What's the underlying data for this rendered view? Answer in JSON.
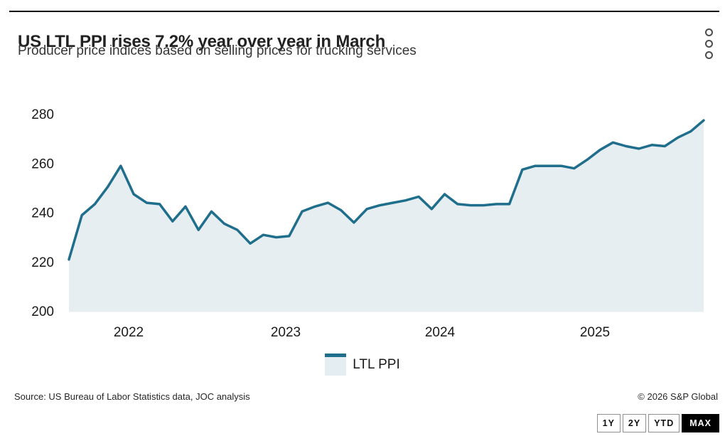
{
  "header": {
    "title": "US LTL PPI rises 7.2% year over year in March",
    "subtitle": "Producer price indices based on selling prices for trucking services"
  },
  "chart_data": {
    "type": "area",
    "title": "US LTL PPI rises 7.2% year over year in March",
    "subtitle": "Producer price indices based on selling prices for trucking services",
    "x": [
      "2022-02",
      "2022-03",
      "2022-04",
      "2022-05",
      "2022-06",
      "2022-07",
      "2022-08",
      "2022-09",
      "2022-10",
      "2022-11",
      "2022-12",
      "2023-01",
      "2023-02",
      "2023-03",
      "2023-04",
      "2023-05",
      "2023-06",
      "2023-07",
      "2023-08",
      "2023-09",
      "2023-10",
      "2023-11",
      "2023-12",
      "2024-01",
      "2024-02",
      "2024-03",
      "2024-04",
      "2024-05",
      "2024-06",
      "2024-07",
      "2024-08",
      "2024-09",
      "2024-10",
      "2024-11",
      "2024-12",
      "2025-01",
      "2025-02",
      "2025-03",
      "2025-04",
      "2025-05",
      "2025-06",
      "2025-07",
      "2025-08",
      "2025-09",
      "2025-10",
      "2025-11",
      "2025-12",
      "2026-01",
      "2026-02",
      "2026-03"
    ],
    "series": [
      {
        "name": "LTL PPI",
        "values": [
          221,
          239,
          243.5,
          250.5,
          259,
          247.5,
          244,
          243.5,
          236.5,
          242.5,
          233,
          240.5,
          235.5,
          233,
          227.5,
          231,
          230,
          230.5,
          240.5,
          242.5,
          244,
          241,
          236,
          241.5,
          243,
          244,
          245,
          246.5,
          241.5,
          247.5,
          243.5,
          243,
          243,
          243.5,
          243.5,
          257.5,
          259,
          259,
          259,
          258,
          261.5,
          265.5,
          268.5,
          267,
          266,
          267.5,
          267,
          270.5,
          273,
          277.5
        ]
      }
    ],
    "xticks": [
      "2022",
      "2023",
      "2024",
      "2025"
    ],
    "yticks": [
      280,
      260,
      240,
      220,
      200
    ],
    "ylim": [
      200,
      280
    ],
    "xlabel": "",
    "ylabel": "",
    "grid": false,
    "legend_position": "bottom",
    "line_color": "#1f6e8c",
    "fill_color": "#e7eef2"
  },
  "legend": {
    "label": "LTL PPI"
  },
  "footer": {
    "source": "Source: US Bureau of Labor Statistics data, JOC analysis",
    "copyright": "© 2026 S&P Global"
  },
  "range_buttons": [
    {
      "label": "1Y",
      "active": false
    },
    {
      "label": "2Y",
      "active": false
    },
    {
      "label": "YTD",
      "active": false
    },
    {
      "label": "MAX",
      "active": true
    }
  ],
  "icons": {
    "menu": "kebab-menu-icon"
  }
}
